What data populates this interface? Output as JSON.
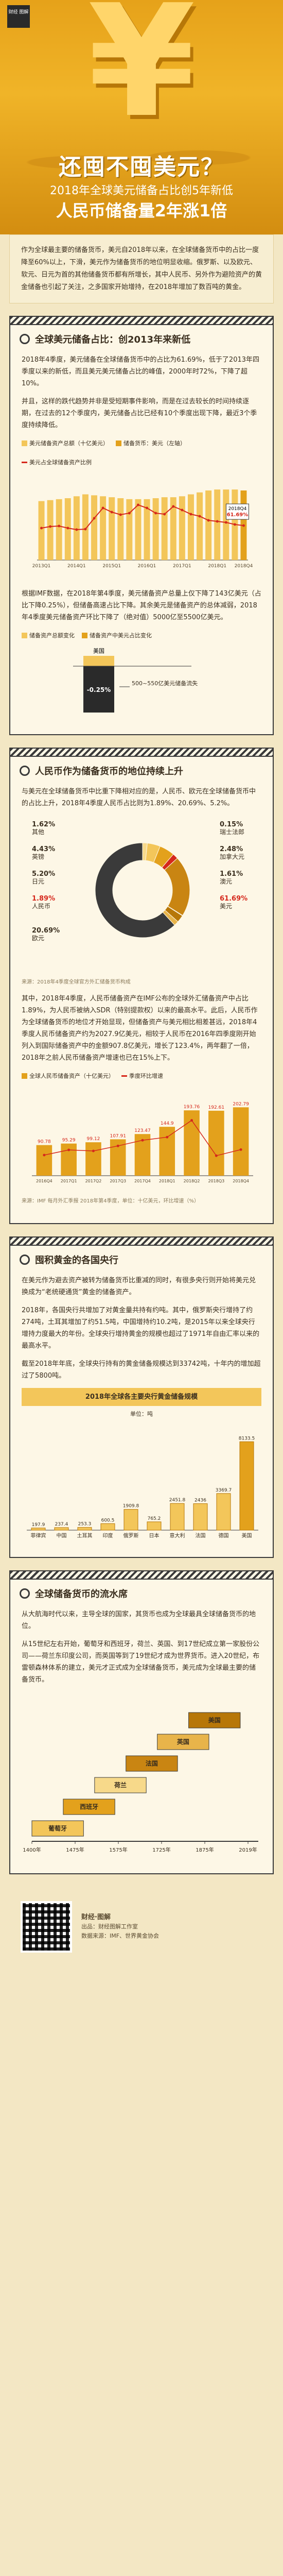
{
  "hero": {
    "logo": "财经\n图解",
    "symbol": "¥",
    "title": "还囤不囤美元？",
    "subtitle1": "2018年全球美元储备占比创5年新低",
    "subtitle2": "人民币储备量2年涨1倍"
  },
  "intro": {
    "text1": "作为全球最主要的储备货币，美元自2018年以来，在全球储备货币中的占比一度降至60%以上，下滑，美元作为储备货币的地位明显收缩。俄罗斯、以及欧元、软元、日元为首的其他储备货币都有所增长，其中人民币、另外作为避险资产的黄金储备也引起了关注，之多国家开始增持，在2018年增加了数百吨的黄金。"
  },
  "s1": {
    "title": "全球美元储备占比：创2013年来新低",
    "p1": "2018年4季度，美元储备在全球储备货币中的占比为61.69%，低于了2013年四季度以来的新低，而且美元美元储备占比的峰值，2000年时72%，下降了超10%。",
    "p2": "并且，这样的跌代趋势并非是受短期事件影响，而是在过去较长的时间持续逐期，在过去的12个季度内，美元储备占比已经有10个季度出现下降，最近3个季度持续降低。",
    "legend": [
      "美元储备资产总额（十亿美元）",
      "储备货币：美元（左轴）",
      "美元占全球储备资产比例"
    ],
    "p3": "根据IMF数据，在2018年第4季度，美元储备资产总量上仅下降了143亿美元（占比下降0.25%），但储备高速占比下降。其余美元是储备资产的总体减弱，2018年4季度美元储备资产环比下降了（绝对值）5000亿至5500亿美元。",
    "qc_legend": [
      "储备资产总额变化",
      "储备资产中美元占比变化"
    ],
    "qc_label_us": "美国",
    "qc_note": "-0.25%",
    "qc_side": "500~550亿美元储备流失"
  },
  "chart_data": [
    {
      "type": "bar",
      "title": "",
      "categories": [
        "2013Q1",
        "2013Q2",
        "2013Q3",
        "2013Q4",
        "2014Q1",
        "2014Q2",
        "2014Q3",
        "2014Q4",
        "2015Q1",
        "2015Q2",
        "2015Q3",
        "2015Q4",
        "2016Q1",
        "2016Q2",
        "2016Q3",
        "2016Q4",
        "2017Q1",
        "2017Q2",
        "2017Q3",
        "2017Q4",
        "2018Q1",
        "2018Q2",
        "2018Q3",
        "2018Q4"
      ],
      "series": [
        {
          "name": "美元储备资产总额（十亿美元）",
          "values": [
            6100,
            6200,
            6300,
            6400,
            6600,
            6800,
            6700,
            6600,
            6500,
            6400,
            6300,
            6300,
            6300,
            6400,
            6500,
            6500,
            6600,
            6800,
            7000,
            7200,
            7300,
            7300,
            7300,
            7200
          ]
        },
        {
          "name": "美元占全球储备资产比例",
          "values": [
            61.2,
            61.5,
            61.6,
            61.2,
            60.9,
            61.0,
            63.1,
            65.1,
            64.3,
            63.8,
            64.1,
            65.7,
            65.1,
            64.1,
            63.9,
            65.4,
            64.7,
            63.9,
            63.5,
            62.7,
            62.5,
            62.3,
            61.9,
            61.69
          ]
        }
      ],
      "annotation": "61.69%",
      "annotation2": "2018Q4"
    },
    {
      "type": "bar",
      "title": "人民币储备资产（十亿美元）",
      "categories": [
        "2016Q4",
        "2017Q1",
        "2017Q2",
        "2017Q3",
        "2017Q4",
        "2018Q1",
        "2018Q2",
        "2018Q3",
        "2018Q4"
      ],
      "series": [
        {
          "name": "人民币储备资产（十亿美元）",
          "values": [
            90.78,
            95.29,
            99.12,
            107.91,
            123.47,
            144.9,
            193.76,
            192.61,
            202.79
          ]
        },
        {
          "name": "季度环比增速",
          "values": [
            0,
            5.0,
            4.0,
            8.9,
            14.4,
            17.4,
            33.7,
            -0.6,
            5.3
          ]
        }
      ]
    },
    {
      "type": "bar",
      "title": "2018年全球各主要央行黄金储备规模",
      "ylabel": "单位：吨",
      "categories": [
        "菲律宾",
        "中国",
        "土耳其",
        "印度",
        "俄罗斯",
        "日本",
        "意大利",
        "法国",
        "德国",
        "美国"
      ],
      "values": [
        197.9,
        237.4,
        253.3,
        600.5,
        1909.8,
        765.2,
        2451.8,
        2436.0,
        3369.7,
        8133.5
      ]
    }
  ],
  "s2": {
    "title": "人民币作为储备货币的地位持续上升",
    "p1": "与美元在全球储备货币中比重下降相对应的是，人民币、欧元在全球储备货币中的占比上升，2018年4季度人民币占比则为1.89%、20.69%、5.2%。",
    "ring": [
      {
        "label": "1.62%",
        "name": "其他"
      },
      {
        "label": "4.43%",
        "name": "英镑"
      },
      {
        "label": "5.20%",
        "name": "日元"
      },
      {
        "label": "1.89%",
        "name": "人民币"
      },
      {
        "label": "20.69%",
        "name": "欧元"
      },
      {
        "label": "0.15%",
        "name": "瑞士法郎"
      },
      {
        "label": "2.48%",
        "name": "加拿大元"
      },
      {
        "label": "1.61%",
        "name": "澳元"
      },
      {
        "label": "61.69%",
        "name": "美元"
      }
    ],
    "ring_source": "来源：2018年4季度全球官方外汇储备货币构成",
    "p2": "其中，2018年4季度，人民币储备资产在IMF公布的全球外汇储备资产中占比1.89%，为人民币被纳入SDR（特别提款权）以来的最高水平。此后，人民币作为全球储备货币的地位才开始显现，但储备资产与美元相比相差甚远，2018年4季度人民币储备资产约为2027.9亿美元，相较于人民币在2016年四季度刚开始列入到国际储备资产中的金额907.8亿美元，增长了123.4%，两年翻了一倍，2018年之前人民币储备资产增速也已在15%上下。",
    "legend": [
      "全球人民币储备资产（十亿美元）",
      "季度环比增速"
    ],
    "note": "来源：IMF 每月外汇季报 2018年第4季度，单位：十亿美元，环比增速（%）"
  },
  "s3": {
    "title": "囤积黄金的各国央行",
    "p1": "在美元作为避去资产被转为储备货币比重减的同时，有很多央行则开始将美元兑换成为“老统硬通货”黄金的储备资产。",
    "p2": "2018年，各国央行共增加了对黄金量共持有约吨。其中，俄罗斯央行增持了约274吨，土耳其增加了约51.5吨，中国增持约10.2吨，是2015年以来全球央行增持力度最大的年份。全球央行增持黄金的规模也超过了1971年自由汇率以来的最高水平。",
    "p3": "截至2018年年底，全球央行持有的黄金储备规模达到33742吨，十年内的增加超过了5800吨。",
    "chart_title": "2018年全球各主要央行黄金储备规模",
    "unit": "单位：吨"
  },
  "s4": {
    "title": "全球储备货币的流水席",
    "p1": "从大航海时代以来，主导全球的国家，其货币也成为全球最具全球储备货币的地位。",
    "p2": "从15世纪左右开始，葡萄牙和西班牙，荷兰、英国、到17世纪成立第一家股份公司——荷兰东印度公司，而英国等到了19世纪才成为世界货币。进入20世纪，布雷顿森林体系的建立，美元才正式成为全球储备货币，美元成为全球最主要的储备货币。",
    "timeline": [
      "葡萄牙",
      "西班牙",
      "荷兰",
      "法国",
      "英国",
      "美国"
    ],
    "years": [
      "1400年",
      "1475年",
      "1575年",
      "1725年",
      "1875年",
      "2019年"
    ]
  },
  "footer": {
    "line1": "财经·图解",
    "line2": "出品：财经图解工作室",
    "line3": "数据来源：IMF、世界黄金协会"
  },
  "colors": {
    "accent": "#d6281c",
    "gold": "#e3a11c",
    "gold_light": "#f3c65a",
    "dark": "#3a3a3a"
  }
}
